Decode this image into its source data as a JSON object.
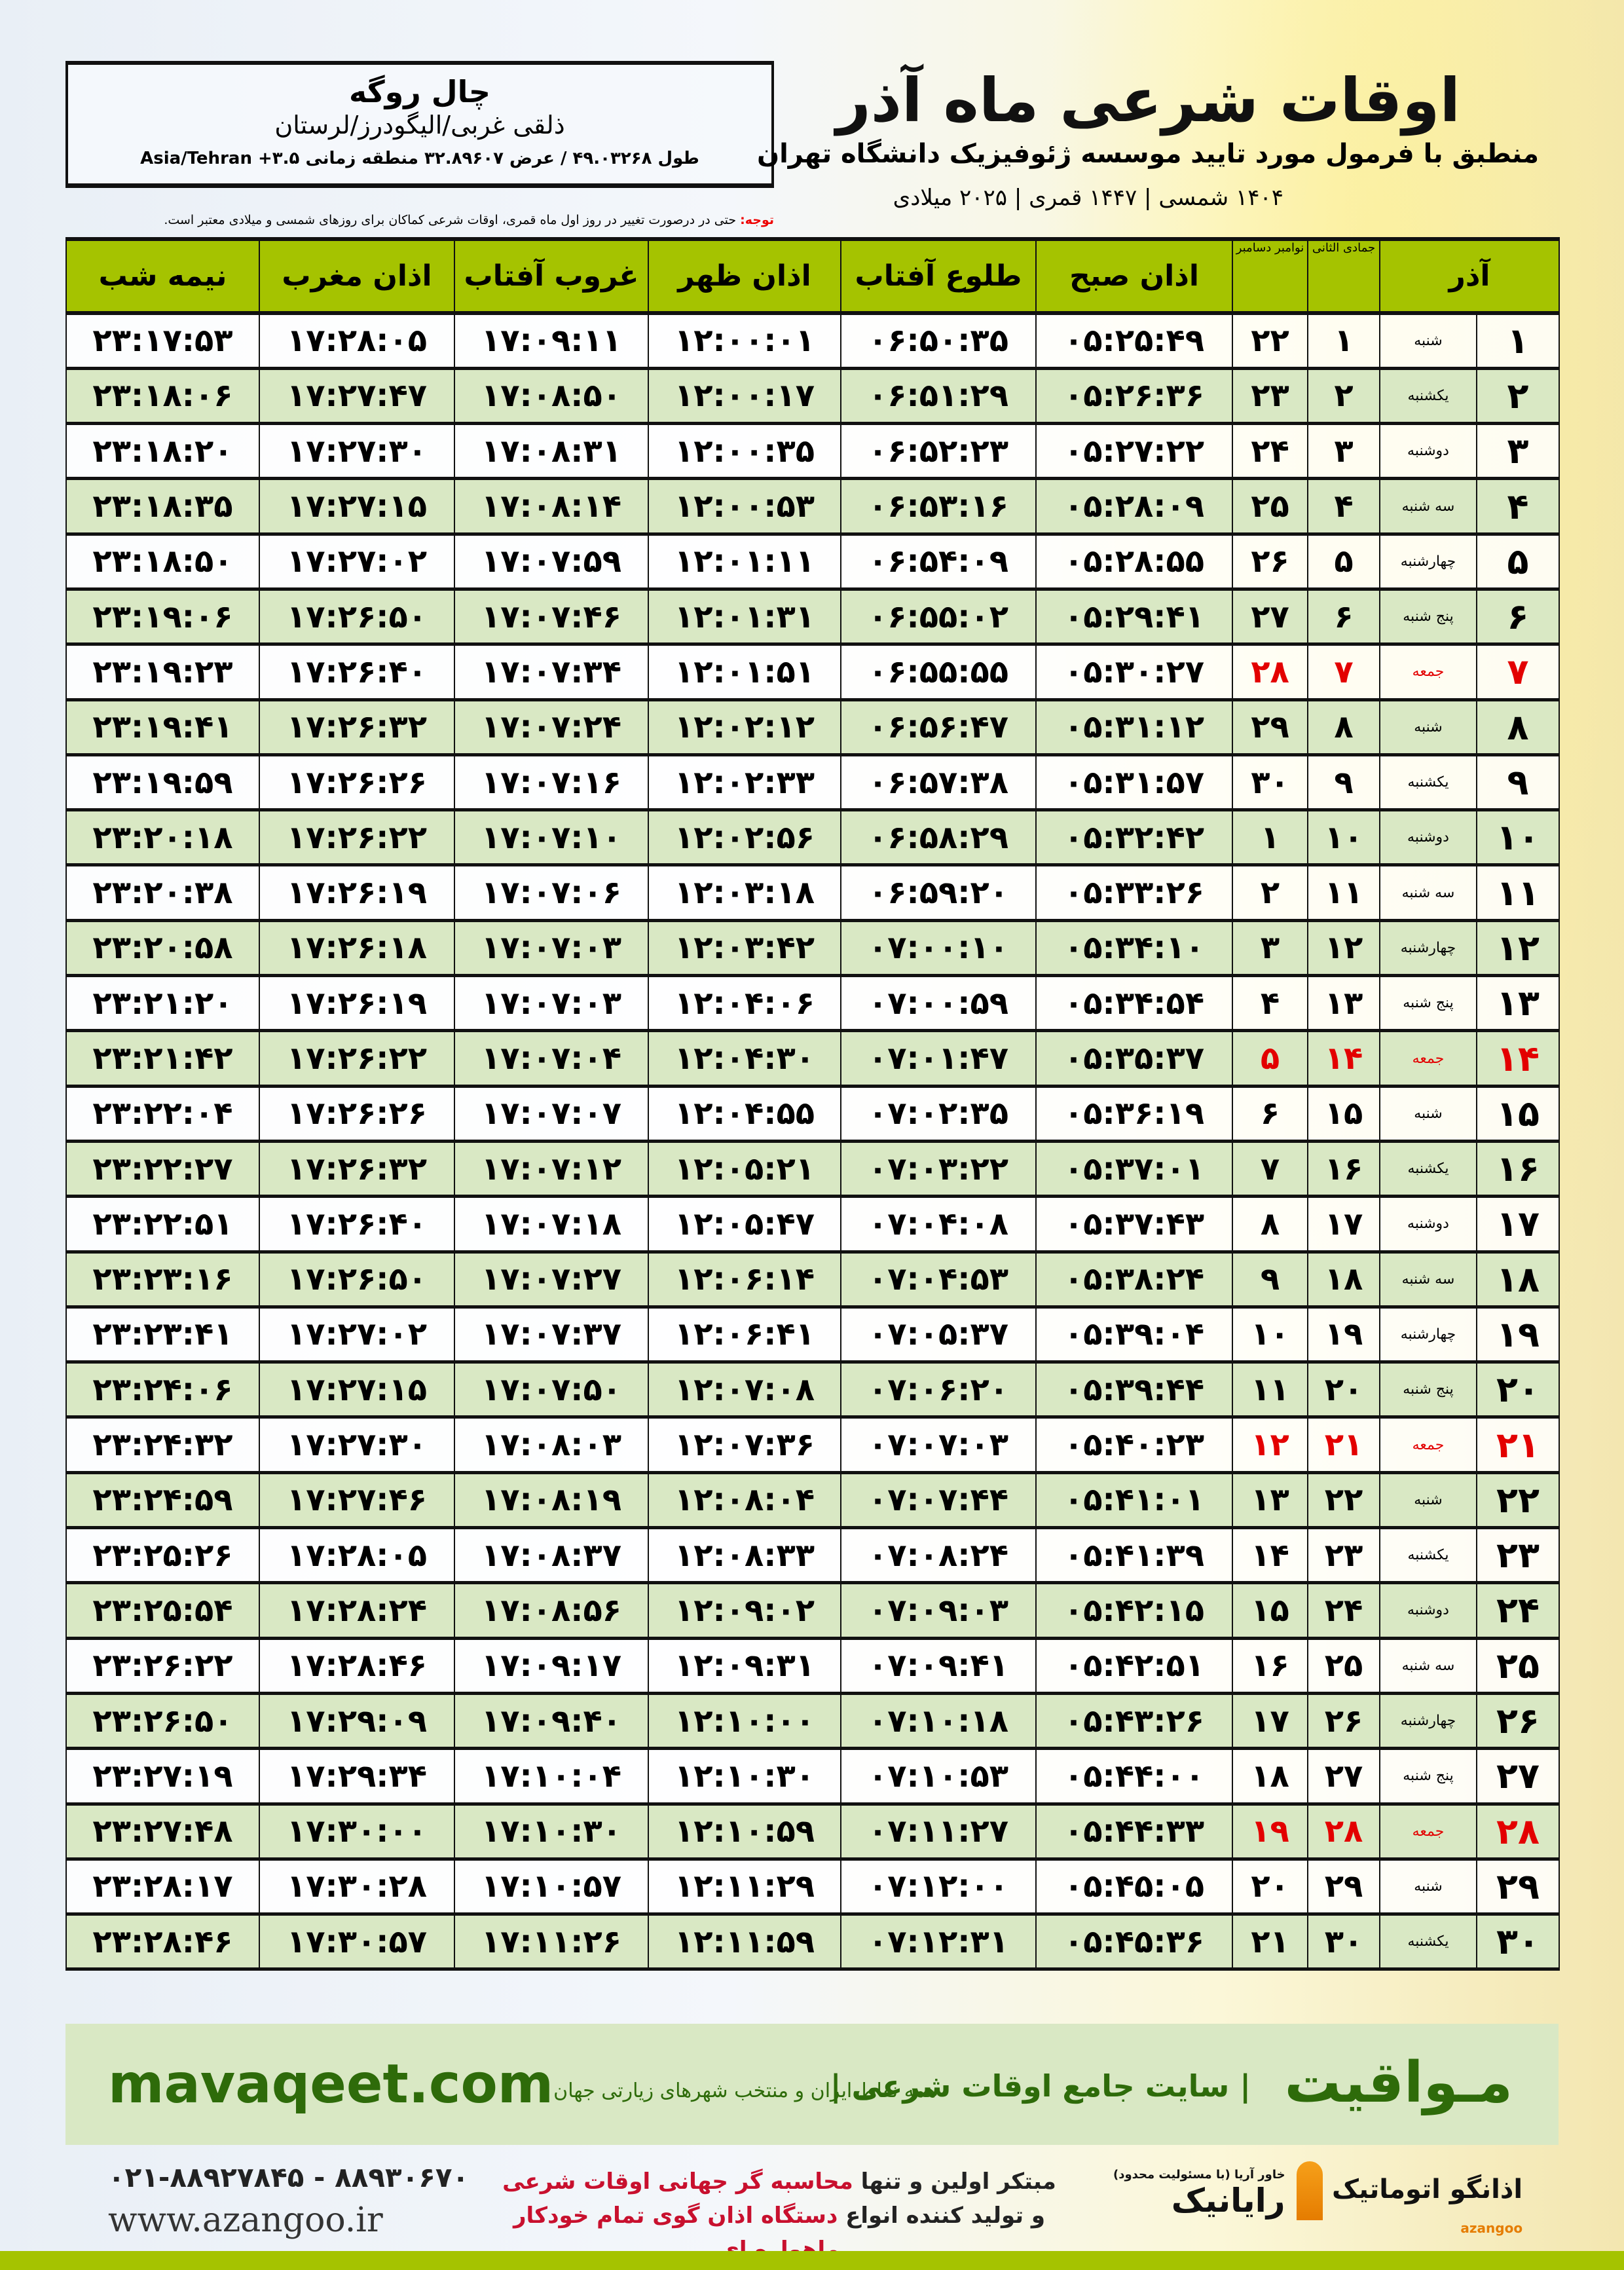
{
  "info": {
    "city": "چال روگه",
    "region": "ذلقی غربی/الیگودرز/لرستان",
    "coords": "طول ۴۹.۰۳۲۶۸ / عرض ۳۲.۸۹۶۰۷ منطقه زمانی ۳.۵+ Asia/Tehran"
  },
  "header": {
    "title": "اوقات شرعی ماه آذر",
    "subtitle": "منطبق با فرمول مورد تایید موسسه ژئوفیزیک دانشگاه تهران",
    "years": "۱۴۰۴ شمسی | ۱۴۴۷ قمری | ۲۰۲۵ میلادی"
  },
  "notice": {
    "label": "توجه:",
    "text": " حتی در درصورت تغییر در روز اول ماه قمری، اوقات شرعی کماکان برای روزهای شمسی و میلادی معتبر است."
  },
  "colors": {
    "header_green": "#a5c300",
    "row_green": "#d9e8c4",
    "friday_red": "#e30000",
    "brand_green": "#2e6b0a"
  },
  "table": {
    "columns": {
      "azar": "آذر",
      "qamari": "جمادی الثانی",
      "miladi": "نوامبر دسامبر",
      "fajr": "اذان صبح",
      "sunrise": "طلوع آفتاب",
      "dhuhr": "اذان ظهر",
      "sunset": "غروب آفتاب",
      "maghrib": "اذان مغرب",
      "midnight": "نیمه شب"
    },
    "rows": [
      [
        "۱",
        "شنبه",
        "۱",
        "۲۲",
        "۰۵:۲۵:۴۹",
        "۰۶:۵۰:۳۵",
        "۱۲:۰۰:۰۱",
        "۱۷:۰۹:۱۱",
        "۱۷:۲۸:۰۵",
        "۲۳:۱۷:۵۳"
      ],
      [
        "۲",
        "یکشنبه",
        "۲",
        "۲۳",
        "۰۵:۲۶:۳۶",
        "۰۶:۵۱:۲۹",
        "۱۲:۰۰:۱۷",
        "۱۷:۰۸:۵۰",
        "۱۷:۲۷:۴۷",
        "۲۳:۱۸:۰۶"
      ],
      [
        "۳",
        "دوشنبه",
        "۳",
        "۲۴",
        "۰۵:۲۷:۲۲",
        "۰۶:۵۲:۲۳",
        "۱۲:۰۰:۳۵",
        "۱۷:۰۸:۳۱",
        "۱۷:۲۷:۳۰",
        "۲۳:۱۸:۲۰"
      ],
      [
        "۴",
        "سه شنبه",
        "۴",
        "۲۵",
        "۰۵:۲۸:۰۹",
        "۰۶:۵۳:۱۶",
        "۱۲:۰۰:۵۳",
        "۱۷:۰۸:۱۴",
        "۱۷:۲۷:۱۵",
        "۲۳:۱۸:۳۵"
      ],
      [
        "۵",
        "چهارشنبه",
        "۵",
        "۲۶",
        "۰۵:۲۸:۵۵",
        "۰۶:۵۴:۰۹",
        "۱۲:۰۱:۱۱",
        "۱۷:۰۷:۵۹",
        "۱۷:۲۷:۰۲",
        "۲۳:۱۸:۵۰"
      ],
      [
        "۶",
        "پنج شنبه",
        "۶",
        "۲۷",
        "۰۵:۲۹:۴۱",
        "۰۶:۵۵:۰۲",
        "۱۲:۰۱:۳۱",
        "۱۷:۰۷:۴۶",
        "۱۷:۲۶:۵۰",
        "۲۳:۱۹:۰۶"
      ],
      [
        "۷",
        "جمعه",
        "۷",
        "۲۸",
        "۰۵:۳۰:۲۷",
        "۰۶:۵۵:۵۵",
        "۱۲:۰۱:۵۱",
        "۱۷:۰۷:۳۴",
        "۱۷:۲۶:۴۰",
        "۲۳:۱۹:۲۳"
      ],
      [
        "۸",
        "شنبه",
        "۸",
        "۲۹",
        "۰۵:۳۱:۱۲",
        "۰۶:۵۶:۴۷",
        "۱۲:۰۲:۱۲",
        "۱۷:۰۷:۲۴",
        "۱۷:۲۶:۳۲",
        "۲۳:۱۹:۴۱"
      ],
      [
        "۹",
        "یکشنبه",
        "۹",
        "۳۰",
        "۰۵:۳۱:۵۷",
        "۰۶:۵۷:۳۸",
        "۱۲:۰۲:۳۳",
        "۱۷:۰۷:۱۶",
        "۱۷:۲۶:۲۶",
        "۲۳:۱۹:۵۹"
      ],
      [
        "۱۰",
        "دوشنبه",
        "۱۰",
        "۱",
        "۰۵:۳۲:۴۲",
        "۰۶:۵۸:۲۹",
        "۱۲:۰۲:۵۶",
        "۱۷:۰۷:۱۰",
        "۱۷:۲۶:۲۲",
        "۲۳:۲۰:۱۸"
      ],
      [
        "۱۱",
        "سه شنبه",
        "۱۱",
        "۲",
        "۰۵:۳۳:۲۶",
        "۰۶:۵۹:۲۰",
        "۱۲:۰۳:۱۸",
        "۱۷:۰۷:۰۶",
        "۱۷:۲۶:۱۹",
        "۲۳:۲۰:۳۸"
      ],
      [
        "۱۲",
        "چهارشنبه",
        "۱۲",
        "۳",
        "۰۵:۳۴:۱۰",
        "۰۷:۰۰:۱۰",
        "۱۲:۰۳:۴۲",
        "۱۷:۰۷:۰۳",
        "۱۷:۲۶:۱۸",
        "۲۳:۲۰:۵۸"
      ],
      [
        "۱۳",
        "پنج شنبه",
        "۱۳",
        "۴",
        "۰۵:۳۴:۵۴",
        "۰۷:۰۰:۵۹",
        "۱۲:۰۴:۰۶",
        "۱۷:۰۷:۰۳",
        "۱۷:۲۶:۱۹",
        "۲۳:۲۱:۲۰"
      ],
      [
        "۱۴",
        "جمعه",
        "۱۴",
        "۵",
        "۰۵:۳۵:۳۷",
        "۰۷:۰۱:۴۷",
        "۱۲:۰۴:۳۰",
        "۱۷:۰۷:۰۴",
        "۱۷:۲۶:۲۲",
        "۲۳:۲۱:۴۲"
      ],
      [
        "۱۵",
        "شنبه",
        "۱۵",
        "۶",
        "۰۵:۳۶:۱۹",
        "۰۷:۰۲:۳۵",
        "۱۲:۰۴:۵۵",
        "۱۷:۰۷:۰۷",
        "۱۷:۲۶:۲۶",
        "۲۳:۲۲:۰۴"
      ],
      [
        "۱۶",
        "یکشنبه",
        "۱۶",
        "۷",
        "۰۵:۳۷:۰۱",
        "۰۷:۰۳:۲۲",
        "۱۲:۰۵:۲۱",
        "۱۷:۰۷:۱۲",
        "۱۷:۲۶:۳۲",
        "۲۳:۲۲:۲۷"
      ],
      [
        "۱۷",
        "دوشنبه",
        "۱۷",
        "۸",
        "۰۵:۳۷:۴۳",
        "۰۷:۰۴:۰۸",
        "۱۲:۰۵:۴۷",
        "۱۷:۰۷:۱۸",
        "۱۷:۲۶:۴۰",
        "۲۳:۲۲:۵۱"
      ],
      [
        "۱۸",
        "سه شنبه",
        "۱۸",
        "۹",
        "۰۵:۳۸:۲۴",
        "۰۷:۰۴:۵۳",
        "۱۲:۰۶:۱۴",
        "۱۷:۰۷:۲۷",
        "۱۷:۲۶:۵۰",
        "۲۳:۲۳:۱۶"
      ],
      [
        "۱۹",
        "چهارشنبه",
        "۱۹",
        "۱۰",
        "۰۵:۳۹:۰۴",
        "۰۷:۰۵:۳۷",
        "۱۲:۰۶:۴۱",
        "۱۷:۰۷:۳۷",
        "۱۷:۲۷:۰۲",
        "۲۳:۲۳:۴۱"
      ],
      [
        "۲۰",
        "پنج شنبه",
        "۲۰",
        "۱۱",
        "۰۵:۳۹:۴۴",
        "۰۷:۰۶:۲۰",
        "۱۲:۰۷:۰۸",
        "۱۷:۰۷:۵۰",
        "۱۷:۲۷:۱۵",
        "۲۳:۲۴:۰۶"
      ],
      [
        "۲۱",
        "جمعه",
        "۲۱",
        "۱۲",
        "۰۵:۴۰:۲۳",
        "۰۷:۰۷:۰۳",
        "۱۲:۰۷:۳۶",
        "۱۷:۰۸:۰۳",
        "۱۷:۲۷:۳۰",
        "۲۳:۲۴:۳۲"
      ],
      [
        "۲۲",
        "شنبه",
        "۲۲",
        "۱۳",
        "۰۵:۴۱:۰۱",
        "۰۷:۰۷:۴۴",
        "۱۲:۰۸:۰۴",
        "۱۷:۰۸:۱۹",
        "۱۷:۲۷:۴۶",
        "۲۳:۲۴:۵۹"
      ],
      [
        "۲۳",
        "یکشنبه",
        "۲۳",
        "۱۴",
        "۰۵:۴۱:۳۹",
        "۰۷:۰۸:۲۴",
        "۱۲:۰۸:۳۳",
        "۱۷:۰۸:۳۷",
        "۱۷:۲۸:۰۵",
        "۲۳:۲۵:۲۶"
      ],
      [
        "۲۴",
        "دوشنبه",
        "۲۴",
        "۱۵",
        "۰۵:۴۲:۱۵",
        "۰۷:۰۹:۰۳",
        "۱۲:۰۹:۰۲",
        "۱۷:۰۸:۵۶",
        "۱۷:۲۸:۲۴",
        "۲۳:۲۵:۵۴"
      ],
      [
        "۲۵",
        "سه شنبه",
        "۲۵",
        "۱۶",
        "۰۵:۴۲:۵۱",
        "۰۷:۰۹:۴۱",
        "۱۲:۰۹:۳۱",
        "۱۷:۰۹:۱۷",
        "۱۷:۲۸:۴۶",
        "۲۳:۲۶:۲۲"
      ],
      [
        "۲۶",
        "چهارشنبه",
        "۲۶",
        "۱۷",
        "۰۵:۴۳:۲۶",
        "۰۷:۱۰:۱۸",
        "۱۲:۱۰:۰۰",
        "۱۷:۰۹:۴۰",
        "۱۷:۲۹:۰۹",
        "۲۳:۲۶:۵۰"
      ],
      [
        "۲۷",
        "پنج شنبه",
        "۲۷",
        "۱۸",
        "۰۵:۴۴:۰۰",
        "۰۷:۱۰:۵۳",
        "۱۲:۱۰:۳۰",
        "۱۷:۱۰:۰۴",
        "۱۷:۲۹:۳۴",
        "۲۳:۲۷:۱۹"
      ],
      [
        "۲۸",
        "جمعه",
        "۲۸",
        "۱۹",
        "۰۵:۴۴:۳۳",
        "۰۷:۱۱:۲۷",
        "۱۲:۱۰:۵۹",
        "۱۷:۱۰:۳۰",
        "۱۷:۳۰:۰۰",
        "۲۳:۲۷:۴۸"
      ],
      [
        "۲۹",
        "شنبه",
        "۲۹",
        "۲۰",
        "۰۵:۴۵:۰۵",
        "۰۷:۱۲:۰۰",
        "۱۲:۱۱:۲۹",
        "۱۷:۱۰:۵۷",
        "۱۷:۳۰:۲۸",
        "۲۳:۲۸:۱۷"
      ],
      [
        "۳۰",
        "یکشنبه",
        "۳۰",
        "۲۱",
        "۰۵:۴۵:۳۶",
        "۰۷:۱۲:۳۱",
        "۱۲:۱۱:۵۹",
        "۱۷:۱۱:۲۶",
        "۱۷:۳۰:۵۷",
        "۲۳:۲۸:۴۶"
      ]
    ]
  },
  "banner": {
    "brand": "مـواقیت",
    "tagline": "| سایت جامع اوقات شرعی |",
    "tagline2": "همه نقاط ایران و منتخب شهرهای زیارتی جهان",
    "site": "mavaqeet.com"
  },
  "footer": {
    "phones": "۰۲۱-۸۸۹۲۷۸۴۵ - ۸۸۹۳۰۶۷۰",
    "website": "www.azangoo.ir",
    "promo_line1_a": "مبتکر اولین و تنها ",
    "promo_line1_b": "محاسبه گر جهانی اوقات شرعی",
    "promo_line2_a": "و تولید کننده انواع ",
    "promo_line2_b": "دستگاه اذان گوی تمام خودکار ماهواره ای",
    "logo_rayanik": "رایانیک",
    "logo_rayanik_sub": "خاور آریا (با مسئولیت محدود)",
    "logo_azangoo": "اذانگو اتوماتیک",
    "logo_azangoo_sub": "azangoo"
  }
}
